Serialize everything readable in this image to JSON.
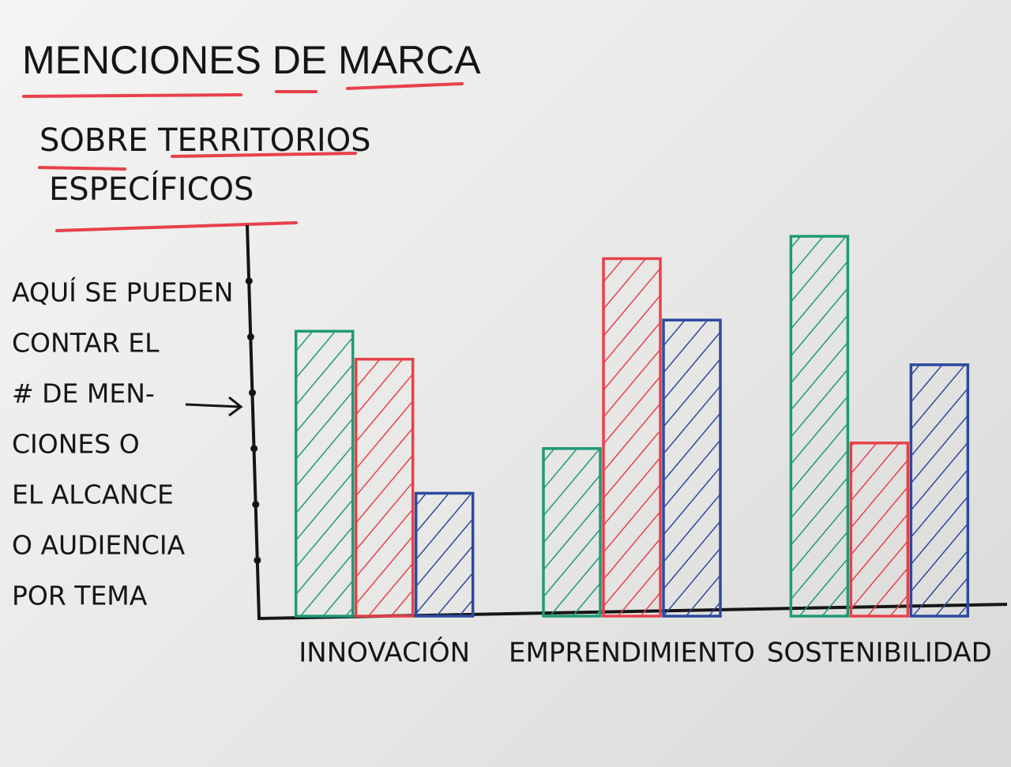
{
  "chart_data": {
    "type": "bar",
    "title": "MENCIONES DE MARCA",
    "subtitle": [
      "SOBRE TERRITORIOS",
      "ESPECÍFICOS"
    ],
    "annotation": [
      "AQUÍ SE PUEDEN",
      "CONTAR EL",
      "# DE MEN-",
      "CIONES O",
      "EL ALCANCE",
      "O AUDIENCIA",
      "POR TEMA"
    ],
    "categories": [
      "INNOVACIÓN",
      "EMPRENDIMIENTO",
      "SOSTENIBILIDAD"
    ],
    "series": [
      {
        "color": "#1f9a78",
        "values": [
          5.1,
          3.0,
          6.8
        ]
      },
      {
        "color": "#e8414a",
        "values": [
          4.6,
          6.4,
          3.1
        ]
      },
      {
        "color": "#2c4aa0",
        "values": [
          2.2,
          5.3,
          4.5
        ]
      }
    ],
    "ylim": [
      0,
      7
    ],
    "yticks": [
      1,
      2,
      3,
      4,
      5,
      6
    ]
  }
}
